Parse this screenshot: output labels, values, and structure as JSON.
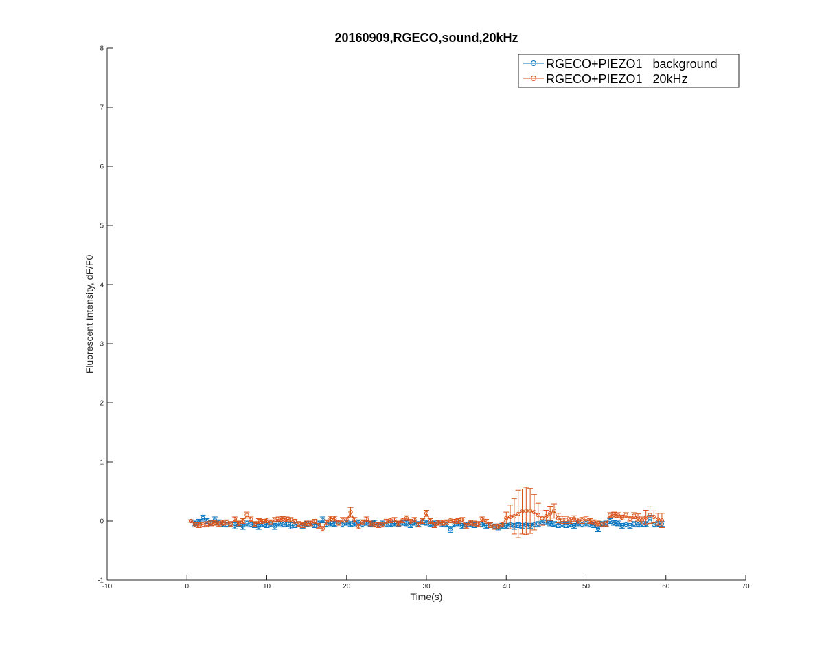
{
  "chart_data": {
    "type": "line",
    "title": "20160909,RGECO,sound,20kHz",
    "xlabel": "Time(s)",
    "ylabel": "Fluorescent Intensity, dF/F0",
    "xlim": [
      -10,
      70
    ],
    "ylim": [
      -1,
      8
    ],
    "xticks": [
      -10,
      0,
      10,
      20,
      30,
      40,
      50,
      60,
      70
    ],
    "yticks": [
      -1,
      0,
      1,
      2,
      3,
      4,
      5,
      6,
      7,
      8
    ],
    "xtick_labels": [
      "-10",
      "0",
      "10",
      "20",
      "30",
      "40",
      "50",
      "60",
      "70"
    ],
    "ytick_labels": [
      "-1",
      "0",
      "1",
      "2",
      "3",
      "4",
      "5",
      "6",
      "7",
      "8"
    ],
    "grid": false,
    "box": false,
    "legend": {
      "location": "top-right",
      "boxed": true
    },
    "series": [
      {
        "name": "RGECO+PIEZO1   background",
        "color": "#0072BD",
        "marker": "circle",
        "x": [
          0.5,
          1,
          1.5,
          2,
          2.5,
          3,
          3.5,
          4,
          4.5,
          5,
          5.5,
          6,
          6.5,
          7,
          7.5,
          8,
          8.5,
          9,
          9.5,
          10,
          10.5,
          11,
          11.5,
          12,
          12.5,
          13,
          13.5,
          14,
          14.5,
          15,
          15.5,
          16,
          16.5,
          17,
          17.5,
          18,
          18.5,
          19,
          19.5,
          20,
          20.5,
          21,
          21.5,
          22,
          22.5,
          23,
          23.5,
          24,
          24.5,
          25,
          25.5,
          26,
          26.5,
          27,
          27.5,
          28,
          28.5,
          29,
          29.5,
          30,
          30.5,
          31,
          31.5,
          32,
          32.5,
          33,
          33.5,
          34,
          34.5,
          35,
          35.5,
          36,
          36.5,
          37,
          37.5,
          38,
          38.5,
          39,
          39.5,
          40,
          40.5,
          41,
          41.5,
          42,
          42.5,
          43,
          43.5,
          44,
          44.5,
          45,
          45.5,
          46,
          46.5,
          47,
          47.5,
          48,
          48.5,
          49,
          49.5,
          50,
          50.5,
          51,
          51.5,
          52,
          52.5,
          53,
          53.5,
          54,
          54.5,
          55,
          55.5,
          56,
          56.5,
          57,
          57.5,
          58,
          58.5,
          59,
          59.5
        ],
        "values": [
          0,
          -0.04,
          -0.02,
          0.05,
          0,
          -0.03,
          0.02,
          -0.02,
          -0.05,
          -0.06,
          -0.05,
          -0.08,
          -0.05,
          -0.09,
          -0.04,
          -0.06,
          -0.07,
          -0.09,
          -0.05,
          -0.07,
          -0.05,
          -0.09,
          -0.04,
          -0.06,
          -0.05,
          -0.08,
          -0.07,
          -0.05,
          -0.08,
          -0.05,
          -0.04,
          -0.07,
          -0.04,
          0.02,
          -0.06,
          -0.04,
          -0.05,
          -0.03,
          -0.06,
          -0.03,
          -0.05,
          -0.04,
          -0.02,
          -0.06,
          -0.03,
          -0.05,
          -0.03,
          -0.06,
          -0.04,
          -0.06,
          -0.05,
          -0.04,
          -0.05,
          -0.03,
          -0.04,
          -0.07,
          -0.03,
          -0.05,
          -0.02,
          -0.03,
          -0.05,
          -0.04,
          -0.03,
          -0.05,
          -0.06,
          -0.14,
          -0.06,
          -0.04,
          -0.08,
          -0.06,
          -0.05,
          -0.07,
          -0.05,
          -0.06,
          -0.08,
          -0.07,
          -0.09,
          -0.1,
          -0.08,
          -0.08,
          -0.06,
          -0.09,
          -0.07,
          -0.08,
          -0.06,
          -0.08,
          -0.06,
          -0.05,
          -0.03,
          -0.02,
          -0.04,
          -0.05,
          -0.07,
          -0.05,
          -0.07,
          -0.05,
          -0.08,
          -0.04,
          -0.06,
          -0.04,
          -0.06,
          -0.07,
          -0.13,
          -0.05,
          -0.04,
          0,
          -0.03,
          -0.04,
          -0.08,
          -0.06,
          -0.08,
          -0.05,
          -0.06,
          -0.05,
          -0.05,
          0.04,
          -0.06,
          -0.05,
          -0.05
        ],
        "error": [
          0.02,
          0.04,
          0.05,
          0.05,
          0.04,
          0.04,
          0.05,
          0.04,
          0.04,
          0.04,
          0.04,
          0.05,
          0.04,
          0.05,
          0.04,
          0.04,
          0.04,
          0.05,
          0.04,
          0.04,
          0.04,
          0.05,
          0.04,
          0.04,
          0.04,
          0.05,
          0.04,
          0.04,
          0.04,
          0.04,
          0.04,
          0.04,
          0.04,
          0.05,
          0.04,
          0.04,
          0.04,
          0.04,
          0.04,
          0.04,
          0.04,
          0.04,
          0.04,
          0.04,
          0.04,
          0.04,
          0.04,
          0.04,
          0.04,
          0.04,
          0.04,
          0.04,
          0.04,
          0.04,
          0.04,
          0.04,
          0.04,
          0.04,
          0.04,
          0.04,
          0.04,
          0.04,
          0.04,
          0.04,
          0.04,
          0.05,
          0.04,
          0.04,
          0.04,
          0.04,
          0.04,
          0.04,
          0.04,
          0.04,
          0.04,
          0.04,
          0.04,
          0.05,
          0.04,
          0.04,
          0.04,
          0.05,
          0.04,
          0.04,
          0.04,
          0.04,
          0.04,
          0.04,
          0.04,
          0.04,
          0.04,
          0.04,
          0.04,
          0.04,
          0.04,
          0.04,
          0.04,
          0.04,
          0.04,
          0.04,
          0.04,
          0.04,
          0.05,
          0.04,
          0.04,
          0.04,
          0.04,
          0.04,
          0.04,
          0.04,
          0.04,
          0.04,
          0.04,
          0.04,
          0.04,
          0.06,
          0.04,
          0.04,
          0.04
        ]
      },
      {
        "name": "RGECO+PIEZO1   20kHz",
        "color": "#D95319",
        "marker": "circle",
        "x": [
          0.5,
          1,
          1.5,
          2,
          2.5,
          3,
          3.5,
          4,
          4.5,
          5,
          5.5,
          6,
          6.5,
          7,
          7.5,
          8,
          8.5,
          9,
          9.5,
          10,
          10.5,
          11,
          11.5,
          12,
          12.5,
          13,
          13.5,
          14,
          14.5,
          15,
          15.5,
          16,
          16.5,
          17,
          17.5,
          18,
          18.5,
          19,
          19.5,
          20,
          20.5,
          21,
          21.5,
          22,
          22.5,
          23,
          23.5,
          24,
          24.5,
          25,
          25.5,
          26,
          26.5,
          27,
          27.5,
          28,
          28.5,
          29,
          29.5,
          30,
          30.5,
          31,
          31.5,
          32,
          32.5,
          33,
          33.5,
          34,
          34.5,
          35,
          35.5,
          36,
          36.5,
          37,
          37.5,
          38,
          38.5,
          39,
          39.5,
          40,
          40.5,
          41,
          41.5,
          42,
          42.5,
          43,
          43.5,
          44,
          44.5,
          45,
          45.5,
          46,
          46.5,
          47,
          47.5,
          48,
          48.5,
          49,
          49.5,
          50,
          50.5,
          51,
          51.5,
          52,
          52.5,
          53,
          53.5,
          54,
          54.5,
          55,
          55.5,
          56,
          56.5,
          57,
          57.5,
          58,
          58.5,
          59,
          59.5
        ],
        "values": [
          0,
          -0.06,
          -0.07,
          -0.06,
          -0.05,
          -0.04,
          -0.03,
          -0.05,
          -0.03,
          -0.02,
          -0.05,
          0.03,
          -0.04,
          0,
          0.1,
          0.03,
          -0.05,
          0,
          -0.01,
          0.01,
          -0.02,
          0.02,
          0.03,
          0.04,
          0.03,
          0.02,
          -0.01,
          -0.05,
          -0.07,
          -0.04,
          -0.04,
          -0.01,
          -0.08,
          -0.13,
          -0.02,
          0.04,
          0.04,
          -0.03,
          0.02,
          0.02,
          0.15,
          0.02,
          -0.09,
          -0.02,
          0.03,
          -0.04,
          -0.06,
          -0.07,
          -0.06,
          -0.01,
          0.01,
          0.02,
          -0.04,
          0.01,
          0.05,
          -0.01,
          0.02,
          -0.06,
          0,
          0.13,
          0,
          -0.07,
          -0.03,
          -0.03,
          -0.02,
          0.01,
          -0.01,
          0,
          0.02,
          -0.08,
          -0.03,
          -0.04,
          -0.05,
          0.03,
          -0.01,
          -0.07,
          -0.1,
          -0.09,
          -0.06,
          0.05,
          0.07,
          0.08,
          0.12,
          0.16,
          0.17,
          0.17,
          0.15,
          0.1,
          0.05,
          0.08,
          0.13,
          0.17,
          0.05,
          0.02,
          0.02,
          0.01,
          0.04,
          0,
          0.01,
          0.03,
          0,
          -0.02,
          -0.04,
          -0.06,
          -0.05,
          0.1,
          0.11,
          0.1,
          0.06,
          0.1,
          0.04,
          0.09,
          0.06,
          0.01,
          0.06,
          0.1,
          0.07,
          0.03,
          0.01
        ],
        "error": [
          0.02,
          0.04,
          0.04,
          0.04,
          0.04,
          0.04,
          0.04,
          0.04,
          0.04,
          0.04,
          0.04,
          0.04,
          0.04,
          0.04,
          0.05,
          0.04,
          0.04,
          0.04,
          0.04,
          0.04,
          0.04,
          0.04,
          0.04,
          0.04,
          0.04,
          0.04,
          0.04,
          0.04,
          0.04,
          0.04,
          0.04,
          0.04,
          0.04,
          0.04,
          0.04,
          0.04,
          0.04,
          0.04,
          0.04,
          0.04,
          0.08,
          0.04,
          0.04,
          0.04,
          0.04,
          0.04,
          0.04,
          0.04,
          0.04,
          0.04,
          0.04,
          0.04,
          0.04,
          0.04,
          0.04,
          0.04,
          0.04,
          0.04,
          0.04,
          0.05,
          0.04,
          0.04,
          0.04,
          0.04,
          0.04,
          0.04,
          0.04,
          0.04,
          0.04,
          0.04,
          0.04,
          0.04,
          0.04,
          0.04,
          0.04,
          0.04,
          0.04,
          0.04,
          0.04,
          0.1,
          0.2,
          0.3,
          0.4,
          0.38,
          0.4,
          0.38,
          0.3,
          0.2,
          0.12,
          0.1,
          0.12,
          0.12,
          0.08,
          0.06,
          0.06,
          0.05,
          0.05,
          0.05,
          0.05,
          0.05,
          0.04,
          0.04,
          0.04,
          0.04,
          0.04,
          0.04,
          0.04,
          0.04,
          0.04,
          0.04,
          0.04,
          0.05,
          0.06,
          0.06,
          0.12,
          0.14,
          0.1,
          0.1,
          0.12
        ]
      }
    ]
  }
}
